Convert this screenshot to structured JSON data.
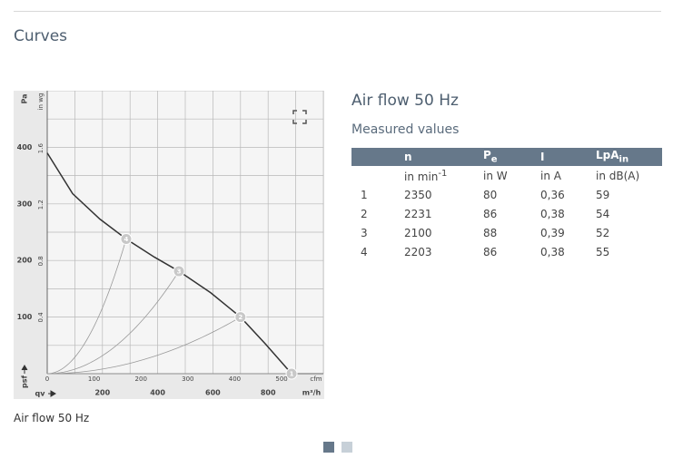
{
  "page_title": "Curves",
  "caption": "Air flow 50 Hz",
  "chart_data": {
    "type": "line",
    "y_label": "Pa",
    "y2_label": "in wg",
    "x_label": "m³/h",
    "x2_label": "cfm",
    "y_symbol": "psf",
    "x_symbol": "qv",
    "xlim": [
      0,
      1000
    ],
    "xticks": [
      200,
      400,
      600,
      800
    ],
    "xgrid": [
      0,
      100,
      200,
      300,
      400,
      500,
      600,
      700,
      800,
      900,
      1000
    ],
    "ylim": [
      0,
      500
    ],
    "yticks": [
      100,
      200,
      300,
      400
    ],
    "ygrid": [
      0,
      50,
      100,
      150,
      200,
      250,
      300,
      350,
      400,
      450,
      500
    ],
    "x2lim": [
      0,
      589
    ],
    "x2ticks": [
      0,
      100,
      200,
      300,
      400,
      500
    ],
    "y2lim": [
      0,
      2.01
    ],
    "y2ticks": [
      0.4,
      0.8,
      1.2,
      1.6
    ],
    "series": [
      {
        "name": "Air flow 50 Hz",
        "color": "#333333",
        "x": [
          0,
          92,
          191,
          286,
          388,
          477,
          592,
          700,
          793,
          885
        ],
        "values": [
          390,
          318,
          273,
          238,
          206,
          181,
          143,
          100,
          51,
          0
        ]
      }
    ],
    "points": {
      "color": "#c8c8c8",
      "labels": [
        "1",
        "2",
        "3",
        "4"
      ],
      "x": [
        885,
        700,
        477,
        286
      ],
      "values": [
        0,
        100,
        181,
        238
      ]
    }
  },
  "panel": {
    "title": "Air flow 50 Hz",
    "subtitle": "Measured values",
    "table": {
      "header": [
        {
          "text": ""
        },
        {
          "text": "n"
        },
        {
          "text": "P",
          "sub": "e"
        },
        {
          "text": "I"
        },
        {
          "text": "LpA",
          "sub": "in"
        }
      ],
      "units": [
        {
          "text": ""
        },
        {
          "text": "in min",
          "sup": "-1"
        },
        {
          "text": "in W"
        },
        {
          "text": "in A"
        },
        {
          "text": "in dB(A)"
        }
      ],
      "rows": [
        [
          "1",
          "2350",
          "80",
          "0,36",
          "59"
        ],
        [
          "2",
          "2231",
          "86",
          "0,38",
          "54"
        ],
        [
          "3",
          "2100",
          "88",
          "0,39",
          "52"
        ],
        [
          "4",
          "2203",
          "86",
          "0,38",
          "55"
        ]
      ]
    }
  }
}
